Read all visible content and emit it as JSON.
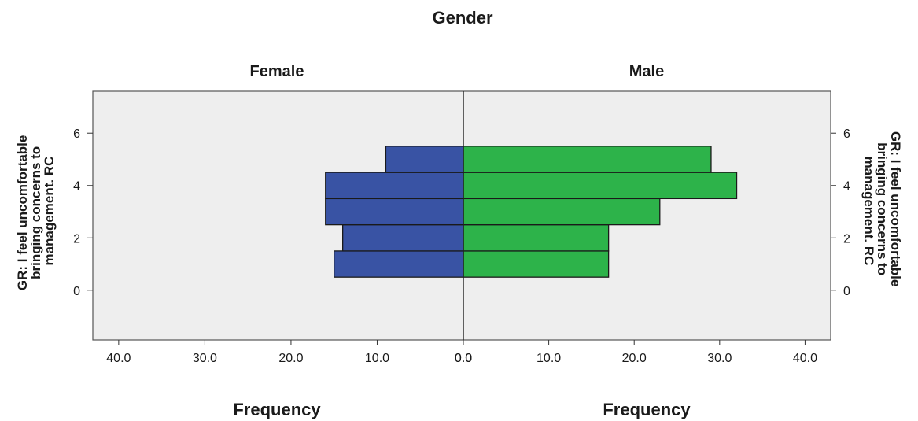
{
  "chart_data": {
    "type": "bar",
    "orientation": "horizontal",
    "layout": "population-pyramid",
    "title": "Gender",
    "ylabel_lines": [
      "GR: I feel uncomfortable",
      "bringing concerns to",
      "management. RC"
    ],
    "y_ticks": [
      0,
      2,
      4,
      6
    ],
    "y_tick_labels": [
      "0",
      "2",
      "4",
      "6"
    ],
    "ylim": [
      -1.9,
      7.6
    ],
    "x_ticks": [
      40,
      30,
      20,
      10,
      0
    ],
    "x_tick_labels": [
      "40.0",
      "30.0",
      "20.0",
      "10.0",
      "0.0"
    ],
    "xlim": [
      0,
      43
    ],
    "categories": [
      1,
      2,
      3,
      4,
      5
    ],
    "bin_width": 1,
    "grid": false,
    "legend": "none",
    "panels": [
      {
        "name": "Female",
        "direction": "left",
        "color": "#3953a4",
        "xlabel": "Frequency",
        "values": [
          15,
          14,
          16,
          16,
          9
        ]
      },
      {
        "name": "Male",
        "direction": "right",
        "color": "#2db34a",
        "xlabel": "Frequency",
        "values": [
          17,
          17,
          23,
          32,
          29
        ]
      }
    ]
  }
}
